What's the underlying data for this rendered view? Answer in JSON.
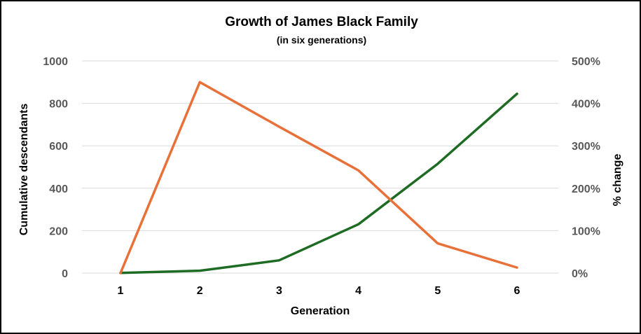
{
  "chart_data": {
    "type": "line",
    "title": "Growth of James Black Family",
    "subtitle": "(in six generations)",
    "xlabel": "Generation",
    "ylabel_left": "Cumulative descendants",
    "ylabel_right": "% change",
    "categories": [
      "1",
      "2",
      "3",
      "4",
      "5",
      "6"
    ],
    "ylim_left": [
      0,
      1000
    ],
    "yticks_left": [
      "0",
      "200",
      "400",
      "600",
      "800",
      "1000"
    ],
    "ylim_right": [
      0,
      500
    ],
    "yticks_right": [
      "0%",
      "100%",
      "200%",
      "300%",
      "400%",
      "500%"
    ],
    "grid": true,
    "legend": "none",
    "series": [
      {
        "axis": "left",
        "color": "#1e6b24",
        "values": [
          1,
          11,
          60,
          230,
          515,
          845
        ]
      },
      {
        "axis": "right",
        "color": "#e8713a",
        "values": [
          0,
          450,
          345,
          242,
          70,
          13
        ]
      }
    ]
  }
}
